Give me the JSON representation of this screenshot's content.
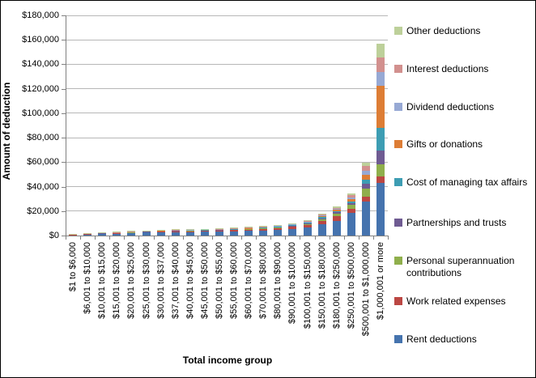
{
  "chart_data": {
    "type": "bar",
    "stacked": true,
    "xlabel": "Total income group",
    "ylabel": "Amount of deduction",
    "ylim": [
      0,
      180000
    ],
    "ytick_step": 20000,
    "ytick_labels": [
      "$0",
      "$20,000",
      "$40,000",
      "$60,000",
      "$80,000",
      "$100,000",
      "$120,000",
      "$140,000",
      "$160,000",
      "$180,000"
    ],
    "grid": true,
    "legend_position": "right",
    "legend_order": [
      "Other deductions",
      "Interest deductions",
      "Dividend deductions",
      "Gifts or donations",
      "Cost of managing tax affairs",
      "Partnerships and trusts",
      "Personal superannuation contributions",
      "Work related expenses",
      "Rent deductions"
    ],
    "categories": [
      "$1 to $6,000",
      "$6,001 to $10,000",
      "$10,001 to $15,000",
      "$15,001 to $20,000",
      "$20,001 to $25,000",
      "$25,001 to $30,000",
      "$30,001 to $37,000",
      "$37,001 to $40,000",
      "$40,001 to $45,000",
      "$45,001 to $50,000",
      "$50,001 to $55,000",
      "$55,001 to $60,000",
      "$60,001 to $70,000",
      "$70,001 to $80,000",
      "$80,001 to $90,000",
      "$90,001 to $100,000",
      "$100,001 to $150,000",
      "$150,001 to $180,000",
      "$180,001 to $250,000",
      "$250,001 to $500,000",
      "$500,001 to $1,000,000",
      "$1,000,001 or more"
    ],
    "series": [
      {
        "name": "Rent deductions",
        "color": "#4573AE",
        "values": [
          700,
          1150,
          1500,
          1700,
          2050,
          2400,
          2600,
          2750,
          2900,
          3050,
          3200,
          3450,
          3750,
          4200,
          4650,
          5300,
          6500,
          9100,
          12200,
          18700,
          27600,
          43000
        ]
      },
      {
        "name": "Work related expenses",
        "color": "#BB4743",
        "values": [
          250,
          380,
          480,
          560,
          670,
          780,
          860,
          920,
          980,
          1040,
          1100,
          1200,
          1320,
          1500,
          1680,
          1930,
          2300,
          2900,
          3400,
          3300,
          4400,
          5300
        ]
      },
      {
        "name": "Personal superannuation contributions",
        "color": "#8FAF4C",
        "values": [
          80,
          130,
          160,
          190,
          220,
          260,
          280,
          300,
          320,
          340,
          360,
          390,
          430,
          490,
          550,
          640,
          870,
          1400,
          2100,
          2900,
          6600,
          9900
        ]
      },
      {
        "name": "Partnerships and trusts",
        "color": "#6F5B92",
        "values": [
          40,
          70,
          90,
          100,
          120,
          140,
          150,
          160,
          170,
          180,
          190,
          210,
          230,
          260,
          290,
          340,
          480,
          800,
          1200,
          1600,
          4000,
          11300
        ]
      },
      {
        "name": "Cost of managing tax affairs",
        "color": "#3D9DB3",
        "values": [
          40,
          70,
          90,
          110,
          130,
          150,
          170,
          180,
          190,
          200,
          210,
          230,
          250,
          280,
          310,
          360,
          480,
          700,
          1000,
          1500,
          3100,
          18500
        ]
      },
      {
        "name": "Gifts or donations",
        "color": "#DD7D35",
        "values": [
          40,
          80,
          100,
          120,
          140,
          160,
          180,
          190,
          210,
          220,
          240,
          260,
          290,
          330,
          370,
          430,
          600,
          900,
          1300,
          1800,
          3900,
          34400
        ]
      },
      {
        "name": "Dividend deductions",
        "color": "#97A9D4",
        "values": [
          20,
          40,
          50,
          60,
          70,
          80,
          90,
          100,
          110,
          120,
          130,
          140,
          160,
          180,
          210,
          240,
          330,
          500,
          750,
          1500,
          3300,
          11300
        ]
      },
      {
        "name": "Interest deductions",
        "color": "#D2908E",
        "values": [
          30,
          50,
          70,
          80,
          100,
          110,
          130,
          150,
          160,
          180,
          190,
          220,
          240,
          280,
          320,
          370,
          500,
          650,
          850,
          1600,
          3800,
          11900
        ]
      },
      {
        "name": "Other deductions",
        "color": "#BDD09A",
        "values": [
          100,
          130,
          160,
          180,
          200,
          220,
          240,
          250,
          260,
          270,
          280,
          300,
          330,
          380,
          420,
          490,
          540,
          650,
          800,
          1700,
          2900,
          11300
        ]
      }
    ]
  },
  "style_colors": {
    "gridline": "#b7b7b7",
    "axis": "#808080",
    "text": "#000000"
  }
}
